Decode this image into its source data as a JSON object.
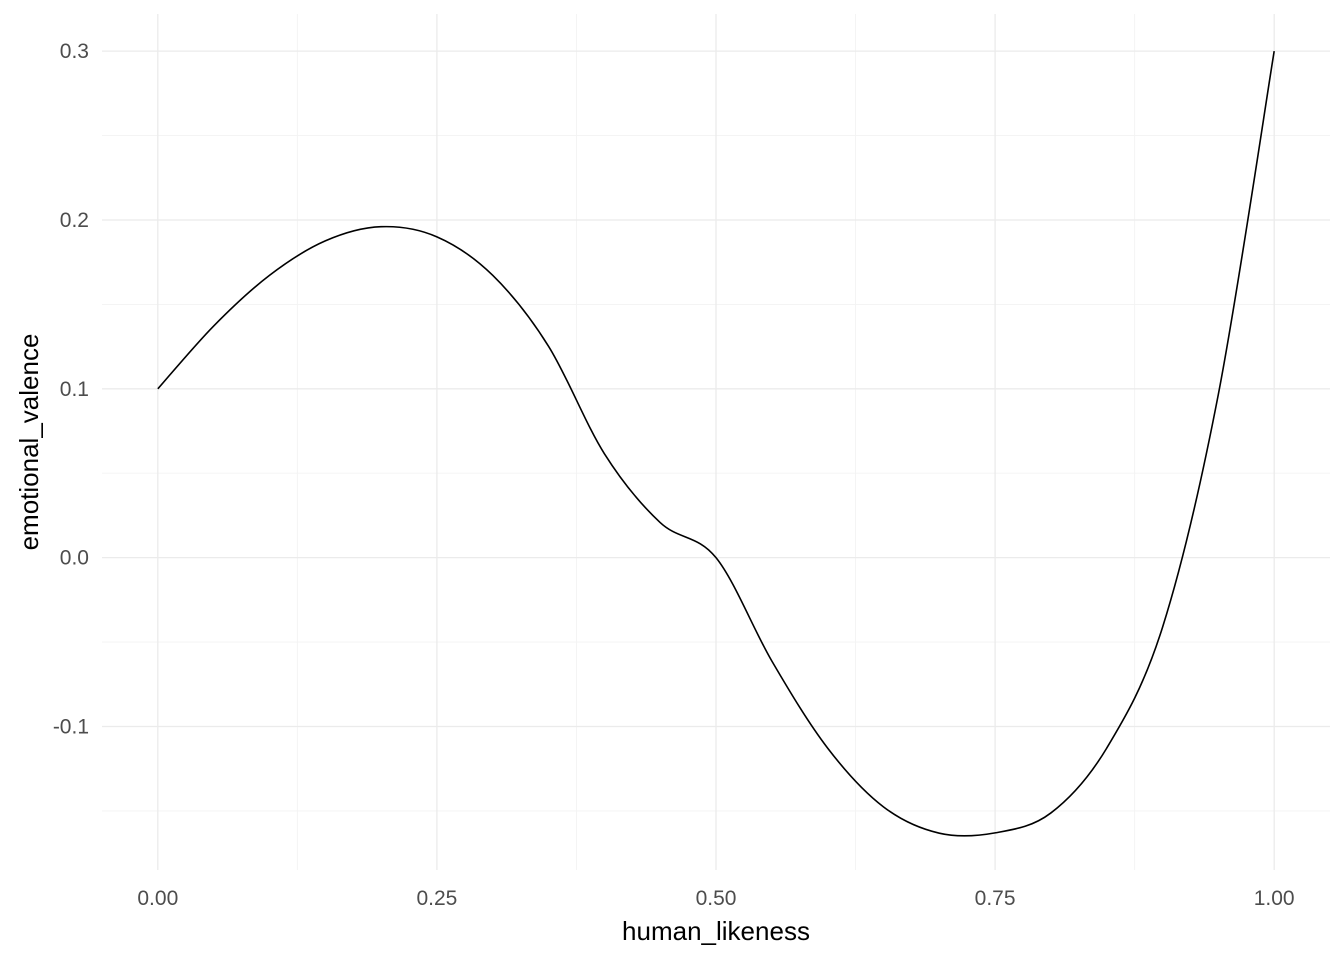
{
  "chart_data": {
    "type": "line",
    "title": "",
    "xlabel": "human_likeness",
    "ylabel": "emotional_valence",
    "xlim": [
      -0.05,
      1.05
    ],
    "ylim": [
      -0.185,
      0.322
    ],
    "x_ticks": [
      0.0,
      0.25,
      0.5,
      0.75,
      1.0
    ],
    "x_tick_labels": [
      "0.00",
      "0.25",
      "0.50",
      "0.75",
      "1.00"
    ],
    "y_ticks": [
      -0.1,
      0.0,
      0.1,
      0.2,
      0.3
    ],
    "y_tick_labels": [
      "-0.1",
      "0.0",
      "0.1",
      "0.2",
      "0.3"
    ],
    "grid": true,
    "legend": "none",
    "series": [
      {
        "color": "#000000",
        "x": [
          0.0,
          0.05,
          0.1,
          0.15,
          0.2,
          0.25,
          0.3,
          0.35,
          0.4,
          0.45,
          0.5,
          0.55,
          0.6,
          0.65,
          0.7,
          0.75,
          0.8,
          0.85,
          0.9,
          0.95,
          1.0
        ],
        "y": [
          0.1,
          0.1372,
          0.1672,
          0.1876,
          0.196,
          0.19,
          0.1672,
          0.1252,
          0.0616,
          0.0208,
          0.0,
          -0.0612,
          -0.1128,
          -0.1476,
          -0.1632,
          -0.163,
          -0.1512,
          -0.1128,
          -0.0412,
          0.0968,
          0.3
        ]
      }
    ]
  }
}
